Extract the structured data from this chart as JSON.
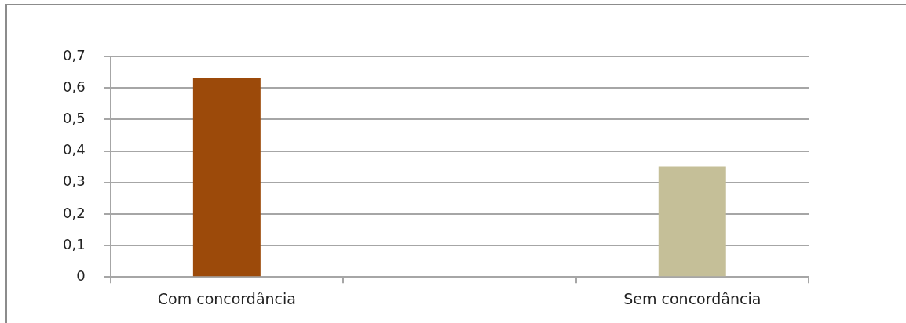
{
  "chart_data": {
    "type": "bar",
    "categories": [
      "Com concordância",
      null,
      "Sem concordância"
    ],
    "values": [
      0.63,
      null,
      0.35
    ],
    "colors": [
      "#9c4a0a",
      null,
      "#c5bf98"
    ],
    "ylim": [
      0,
      0.7
    ],
    "yticks": [
      0,
      {
        "value": 0.1,
        "label": "0,1"
      },
      {
        "value": 0.2,
        "label": "0,2"
      },
      {
        "value": 0.3,
        "label": "0,3"
      },
      {
        "value": 0.4,
        "label": "0,4"
      },
      {
        "value": 0.5,
        "label": "0,5"
      },
      {
        "value": 0.6,
        "label": "0,6"
      },
      {
        "value": 0.7,
        "label": "0,7"
      }
    ],
    "grid": "y"
  }
}
